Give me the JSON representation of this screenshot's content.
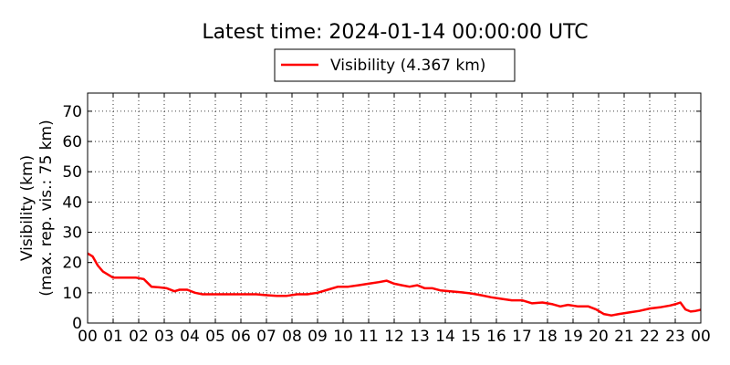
{
  "title": "Latest time: 2024-01-14 00:00:00 UTC",
  "chart_data": {
    "type": "line",
    "title": "Latest time: 2024-01-14 00:00:00 UTC",
    "ylabel_line1": "Visibility (km)",
    "ylabel_line2": "(max. rep. vis.: 75 km)",
    "xlabel": "",
    "xlim": [
      0,
      24
    ],
    "ylim": [
      0,
      76
    ],
    "x_ticks": [
      "00",
      "01",
      "02",
      "03",
      "04",
      "05",
      "06",
      "07",
      "08",
      "09",
      "10",
      "11",
      "12",
      "13",
      "14",
      "15",
      "16",
      "17",
      "18",
      "19",
      "20",
      "21",
      "22",
      "23",
      "00"
    ],
    "y_ticks": [
      "0",
      "10",
      "20",
      "30",
      "40",
      "50",
      "60",
      "70"
    ],
    "grid": true,
    "legend_position": "top-center",
    "series": [
      {
        "name": "Visibility (4.367 km)",
        "color": "#ff0000",
        "x": [
          0,
          0.2,
          0.4,
          0.6,
          0.8,
          1.0,
          1.3,
          1.6,
          1.9,
          2.2,
          2.5,
          2.8,
          3.1,
          3.4,
          3.6,
          3.9,
          4.2,
          4.5,
          4.8,
          5.1,
          5.4,
          5.8,
          6.2,
          6.6,
          7.0,
          7.4,
          7.8,
          8.2,
          8.6,
          9.0,
          9.4,
          9.8,
          10.2,
          10.6,
          11.0,
          11.4,
          11.7,
          12.0,
          12.3,
          12.6,
          12.9,
          13.2,
          13.5,
          13.8,
          14.2,
          14.6,
          15.0,
          15.4,
          15.8,
          16.2,
          16.6,
          17.0,
          17.4,
          17.8,
          18.2,
          18.5,
          18.8,
          19.2,
          19.6,
          19.9,
          20.2,
          20.5,
          20.8,
          21.2,
          21.6,
          22.0,
          22.4,
          22.8,
          23.0,
          23.2,
          23.4,
          23.6,
          23.8,
          24.0
        ],
        "values": [
          23,
          22,
          19,
          17,
          16,
          15,
          15,
          15,
          15,
          14.5,
          12,
          11.8,
          11.5,
          10.5,
          11,
          11,
          10,
          9.5,
          9.5,
          9.5,
          9.5,
          9.5,
          9.5,
          9.5,
          9.2,
          9,
          9,
          9.5,
          9.5,
          10,
          11,
          12,
          12,
          12.5,
          13,
          13.5,
          14,
          13,
          12.5,
          12,
          12.5,
          11.5,
          11.5,
          10.8,
          10.5,
          10.2,
          9.8,
          9.2,
          8.5,
          8,
          7.5,
          7.5,
          6.5,
          6.8,
          6.2,
          5.5,
          6,
          5.5,
          5.5,
          4.5,
          3,
          2.5,
          3,
          3.5,
          4,
          4.8,
          5.2,
          5.8,
          6.2,
          6.8,
          4.5,
          3.8,
          4,
          4.367
        ]
      }
    ]
  }
}
